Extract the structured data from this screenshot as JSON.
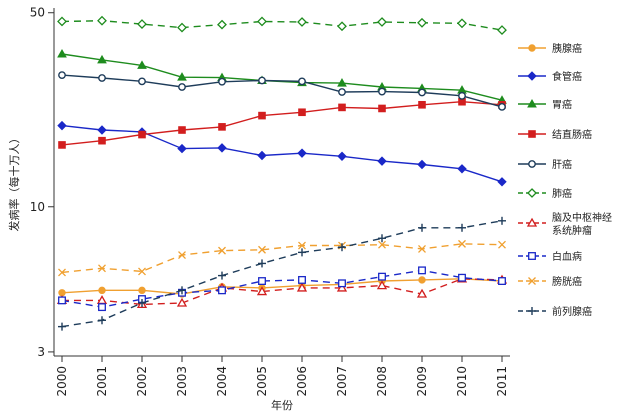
{
  "chart_data": {
    "type": "line",
    "title": "",
    "xlabel": "年份",
    "ylabel": "发病率（每十万人）",
    "yscale": "log",
    "ylim": [
      2.9,
      52
    ],
    "yticks": [
      3,
      10,
      50
    ],
    "x": [
      2000,
      2001,
      2002,
      2003,
      2004,
      2005,
      2006,
      2007,
      2008,
      2009,
      2010,
      2011
    ],
    "series": [
      {
        "name": "胰腺癌",
        "color": "#f0a030",
        "dash": "solid",
        "marker": "circle-filled",
        "values": [
          4.9,
          5.0,
          5.0,
          4.85,
          5.15,
          5.1,
          5.2,
          5.25,
          5.4,
          5.45,
          5.5,
          5.4
        ]
      },
      {
        "name": "食管癌",
        "color": "#1a28c8",
        "dash": "solid",
        "marker": "diamond-filled",
        "values": [
          19.6,
          18.9,
          18.6,
          16.2,
          16.3,
          15.3,
          15.6,
          15.2,
          14.6,
          14.2,
          13.7,
          12.3
        ]
      },
      {
        "name": "胃癌",
        "color": "#1e8c1e",
        "dash": "solid",
        "marker": "triangle-filled",
        "values": [
          35.5,
          33.8,
          32.3,
          29.3,
          29.2,
          28.5,
          28.0,
          27.9,
          27.0,
          26.7,
          26.3,
          24.2
        ]
      },
      {
        "name": "结直肠癌",
        "color": "#d21e1e",
        "dash": "solid",
        "marker": "square-filled",
        "values": [
          16.7,
          17.3,
          18.2,
          18.9,
          19.4,
          21.3,
          21.9,
          22.8,
          22.6,
          23.3,
          23.9,
          23.3
        ]
      },
      {
        "name": "肝癌",
        "color": "#1e3c5a",
        "dash": "solid",
        "marker": "circle-hollow",
        "values": [
          29.8,
          29.1,
          28.3,
          27.0,
          28.2,
          28.5,
          28.3,
          25.9,
          26.0,
          25.8,
          25.1,
          22.9
        ]
      },
      {
        "name": "肺癌",
        "color": "#1e8c1e",
        "dash": "dashed",
        "marker": "diamond-hollow",
        "values": [
          46.5,
          46.8,
          45.5,
          44.2,
          45.3,
          46.5,
          46.3,
          44.7,
          46.3,
          46.0,
          45.8,
          43.3
        ]
      },
      {
        "name": "脑及中枢神经系统肿瘤",
        "color": "#d21e1e",
        "dash": "dashed",
        "marker": "triangle-hollow",
        "values": [
          4.6,
          4.6,
          4.45,
          4.5,
          5.1,
          4.95,
          5.1,
          5.1,
          5.2,
          4.85,
          5.5,
          5.45
        ]
      },
      {
        "name": "白血病",
        "color": "#1a28c8",
        "dash": "dashed",
        "marker": "square-hollow",
        "values": [
          4.6,
          4.35,
          4.65,
          4.9,
          5.0,
          5.4,
          5.45,
          5.3,
          5.6,
          5.9,
          5.55,
          5.4
        ]
      },
      {
        "name": "膀胱癌",
        "color": "#f0a030",
        "dash": "dashed",
        "marker": "x",
        "values": [
          5.8,
          6.0,
          5.85,
          6.7,
          6.95,
          7.0,
          7.25,
          7.25,
          7.3,
          7.05,
          7.35,
          7.3
        ]
      },
      {
        "name": "前列腺癌",
        "color": "#1e3c5a",
        "dash": "dashed",
        "marker": "plus",
        "values": [
          3.7,
          3.9,
          4.5,
          5.0,
          5.65,
          6.25,
          6.85,
          7.15,
          7.7,
          8.4,
          8.4,
          8.9
        ]
      }
    ]
  }
}
